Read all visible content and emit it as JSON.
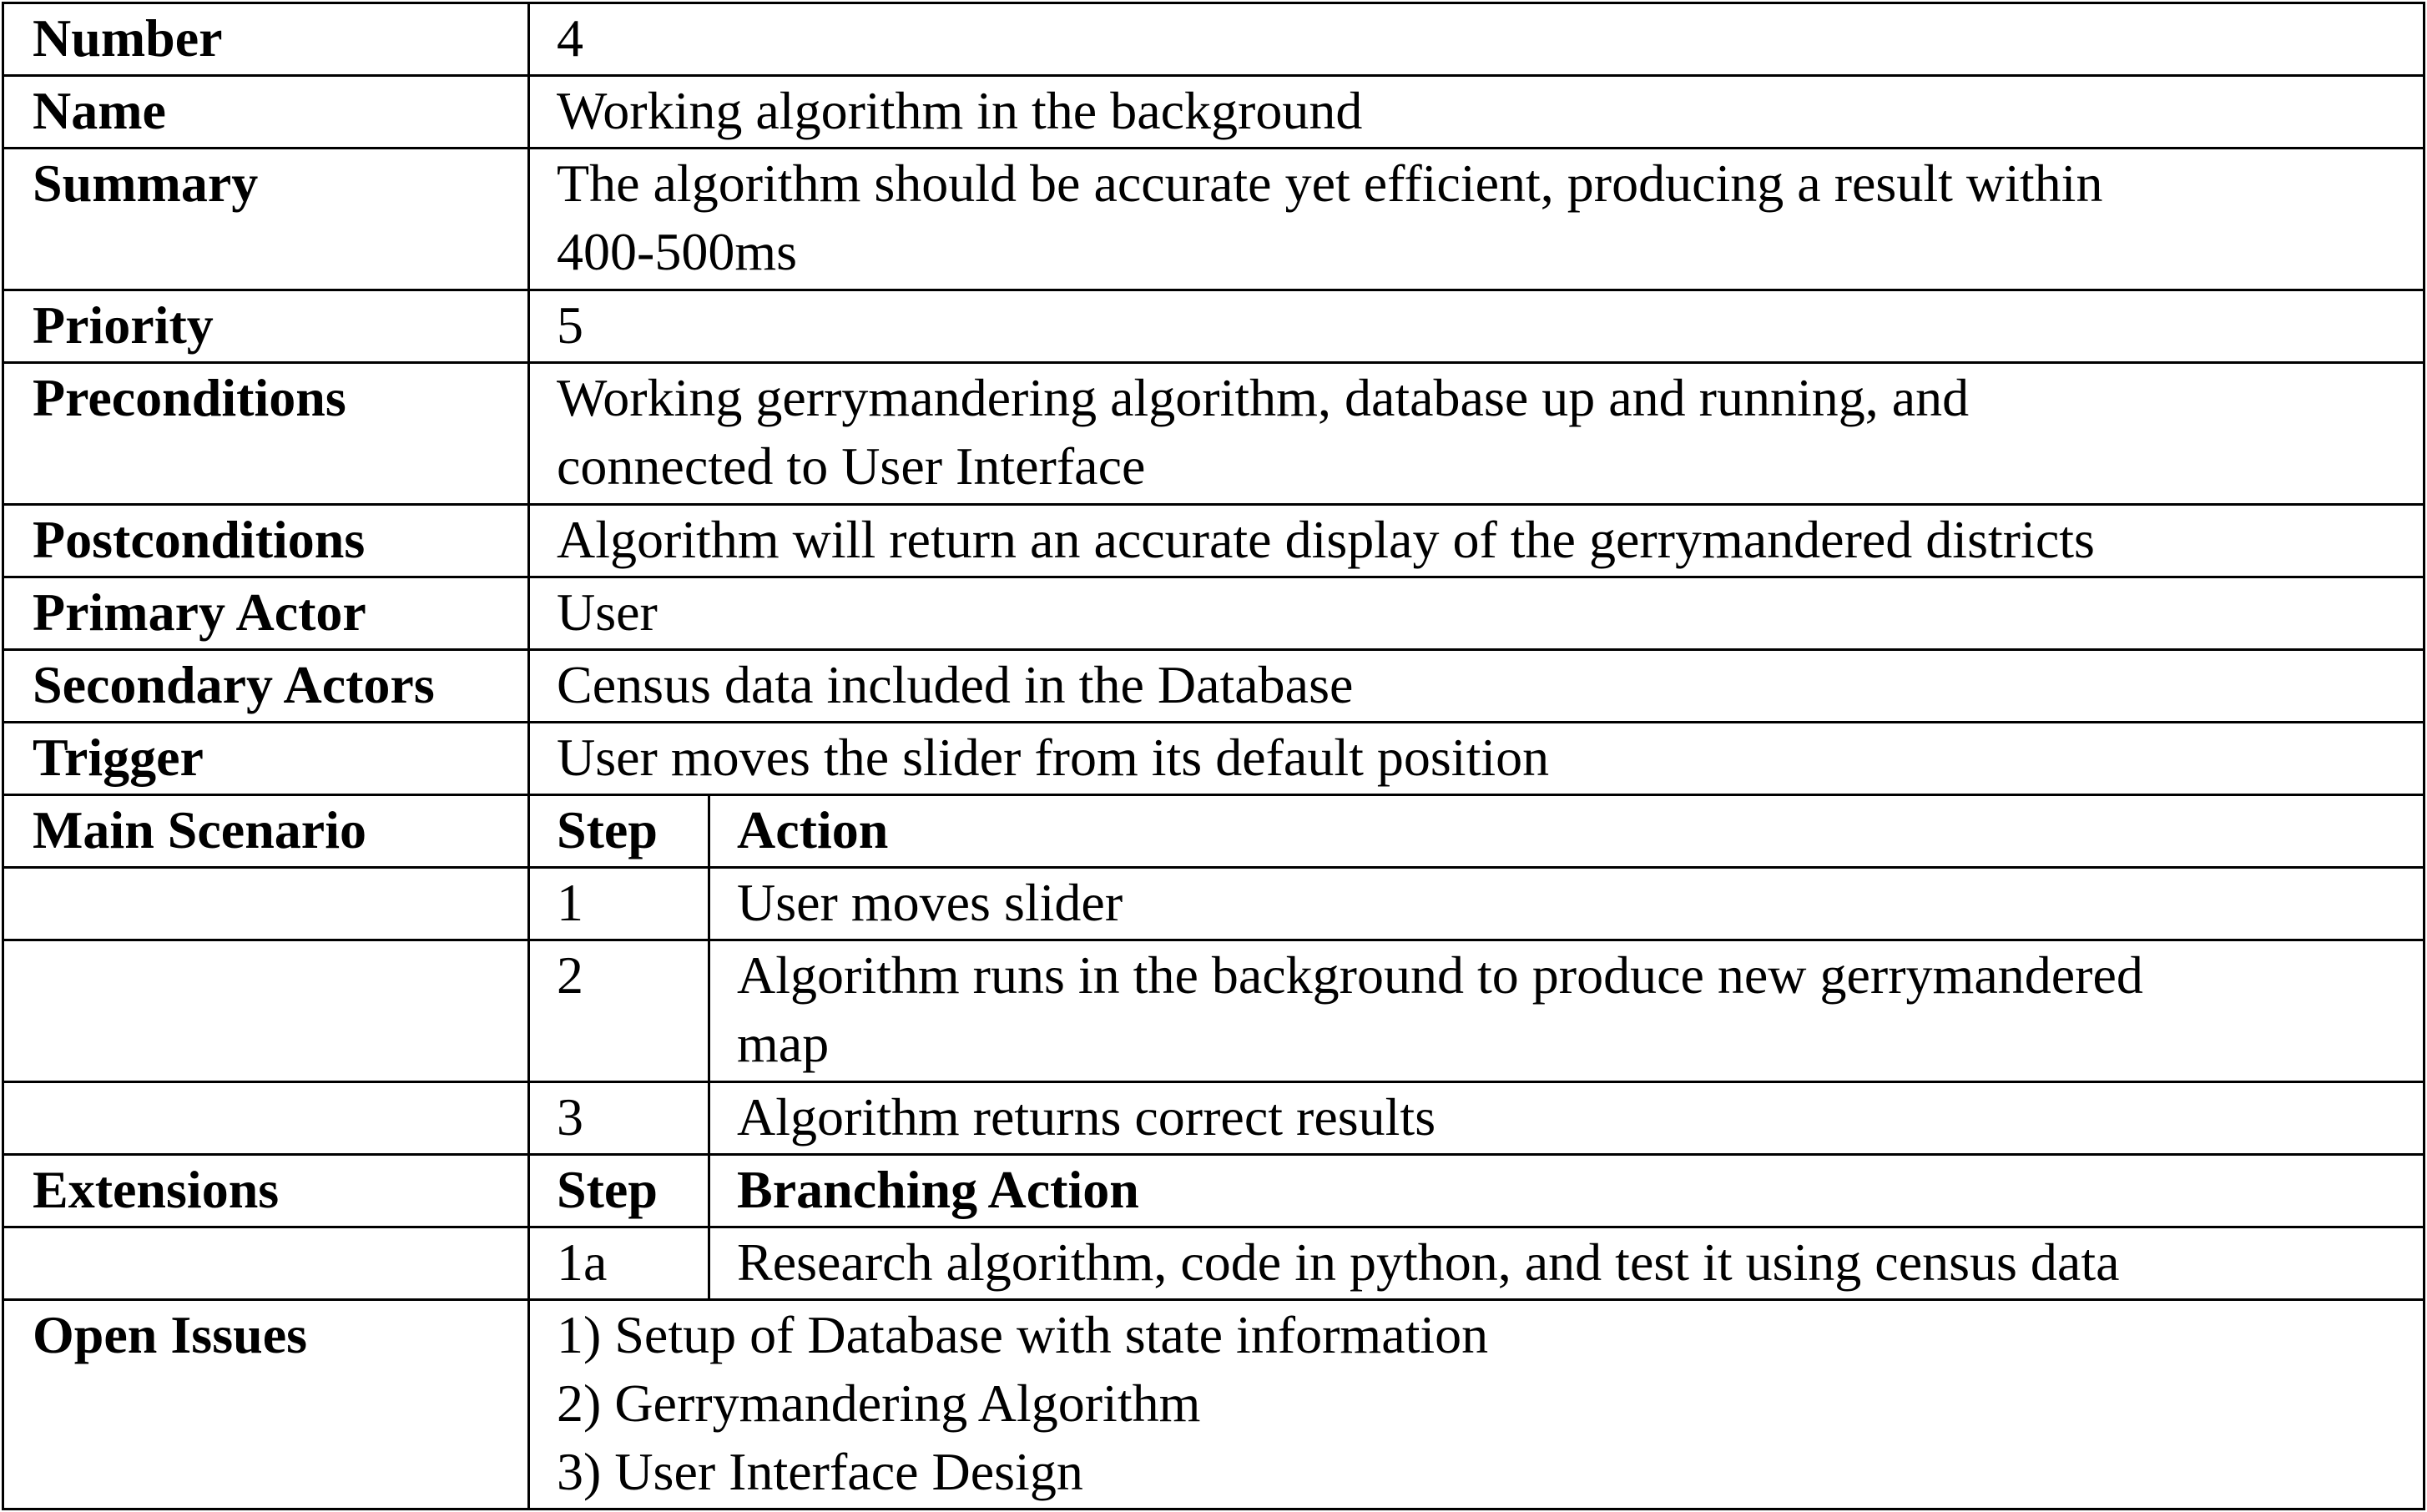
{
  "use_case": {
    "number": {
      "label": "Number",
      "value": "4"
    },
    "name": {
      "label": "Name",
      "value": "Working algorithm in the background"
    },
    "summary": {
      "label": "Summary",
      "lines": [
        "The algorithm should be accurate yet efficient, producing a result within",
        "400-500ms"
      ]
    },
    "priority": {
      "label": "Priority",
      "value": "5"
    },
    "preconditions": {
      "label": "Preconditions",
      "lines": [
        "Working gerrymandering algorithm, database up and running, and",
        "connected to User Interface"
      ]
    },
    "postconditions": {
      "label": "Postconditions",
      "value": "Algorithm will return an accurate display of the gerrymandered districts"
    },
    "primary_actor": {
      "label": "Primary Actor",
      "value": "User"
    },
    "secondary_actors": {
      "label": "Secondary Actors",
      "value": "Census data included in the Database"
    },
    "trigger": {
      "label": "Trigger",
      "value": "User moves the slider from its default position"
    },
    "main_scenario": {
      "label": "Main Scenario",
      "step_header": "Step",
      "action_header": "Action",
      "steps": [
        {
          "step": "1",
          "lines": [
            "User moves slider"
          ]
        },
        {
          "step": "2",
          "lines": [
            "Algorithm runs in the background to produce new gerrymandered",
            "map"
          ]
        },
        {
          "step": "3",
          "lines": [
            "Algorithm returns correct results"
          ]
        }
      ]
    },
    "extensions": {
      "label": "Extensions",
      "step_header": "Step",
      "action_header": "Branching Action",
      "steps": [
        {
          "step": "1a",
          "lines": [
            "Research algorithm, code in python, and test it using census data"
          ]
        }
      ]
    },
    "open_issues": {
      "label": "Open Issues",
      "lines": [
        "1) Setup of Database with state information",
        "2) Gerrymandering Algorithm",
        "3) User Interface Design"
      ]
    }
  }
}
